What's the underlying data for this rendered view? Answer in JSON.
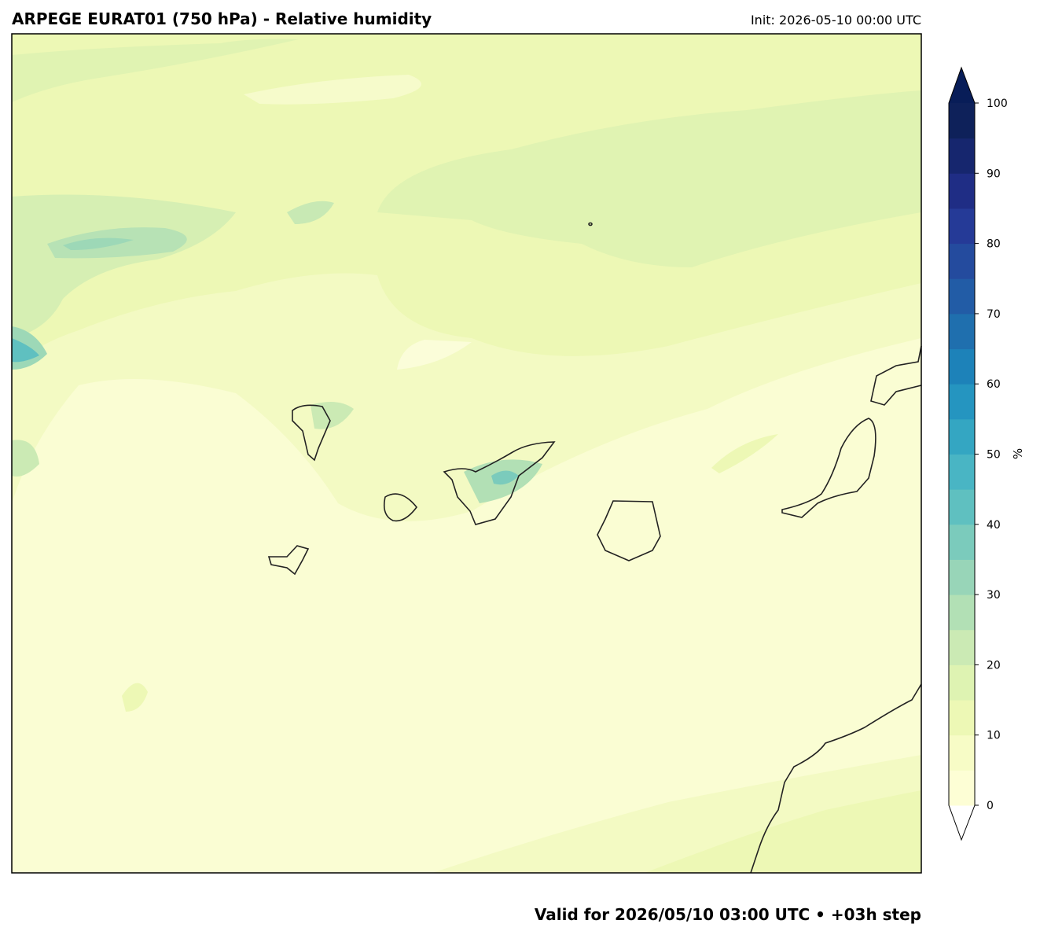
{
  "header": {
    "title": "ARPEGE EURAT01 (750 hPa) - Relative humidity",
    "init": "Init: 2026-05-10 00:00 UTC"
  },
  "footer": {
    "valid": "Valid for 2026/05/10 03:00 UTC  • +03h step"
  },
  "colorbar": {
    "label": "%",
    "lim": [
      0,
      100
    ],
    "ticks": [
      0,
      10,
      20,
      30,
      40,
      50,
      60,
      70,
      80,
      90,
      100
    ],
    "colors": [
      "#fdfed5",
      "#f7fcc6",
      "#edf8b5",
      "#def3b2",
      "#cbeab4",
      "#b2e0b5",
      "#98d5b8",
      "#7bcbbc",
      "#5fc0c0",
      "#49b5c4",
      "#34a6c2",
      "#2595c0",
      "#1d82b9",
      "#1f6fae",
      "#225ca6",
      "#244b9e",
      "#253a97",
      "#1f2d85",
      "#16266e",
      "#0e215a"
    ]
  }
}
